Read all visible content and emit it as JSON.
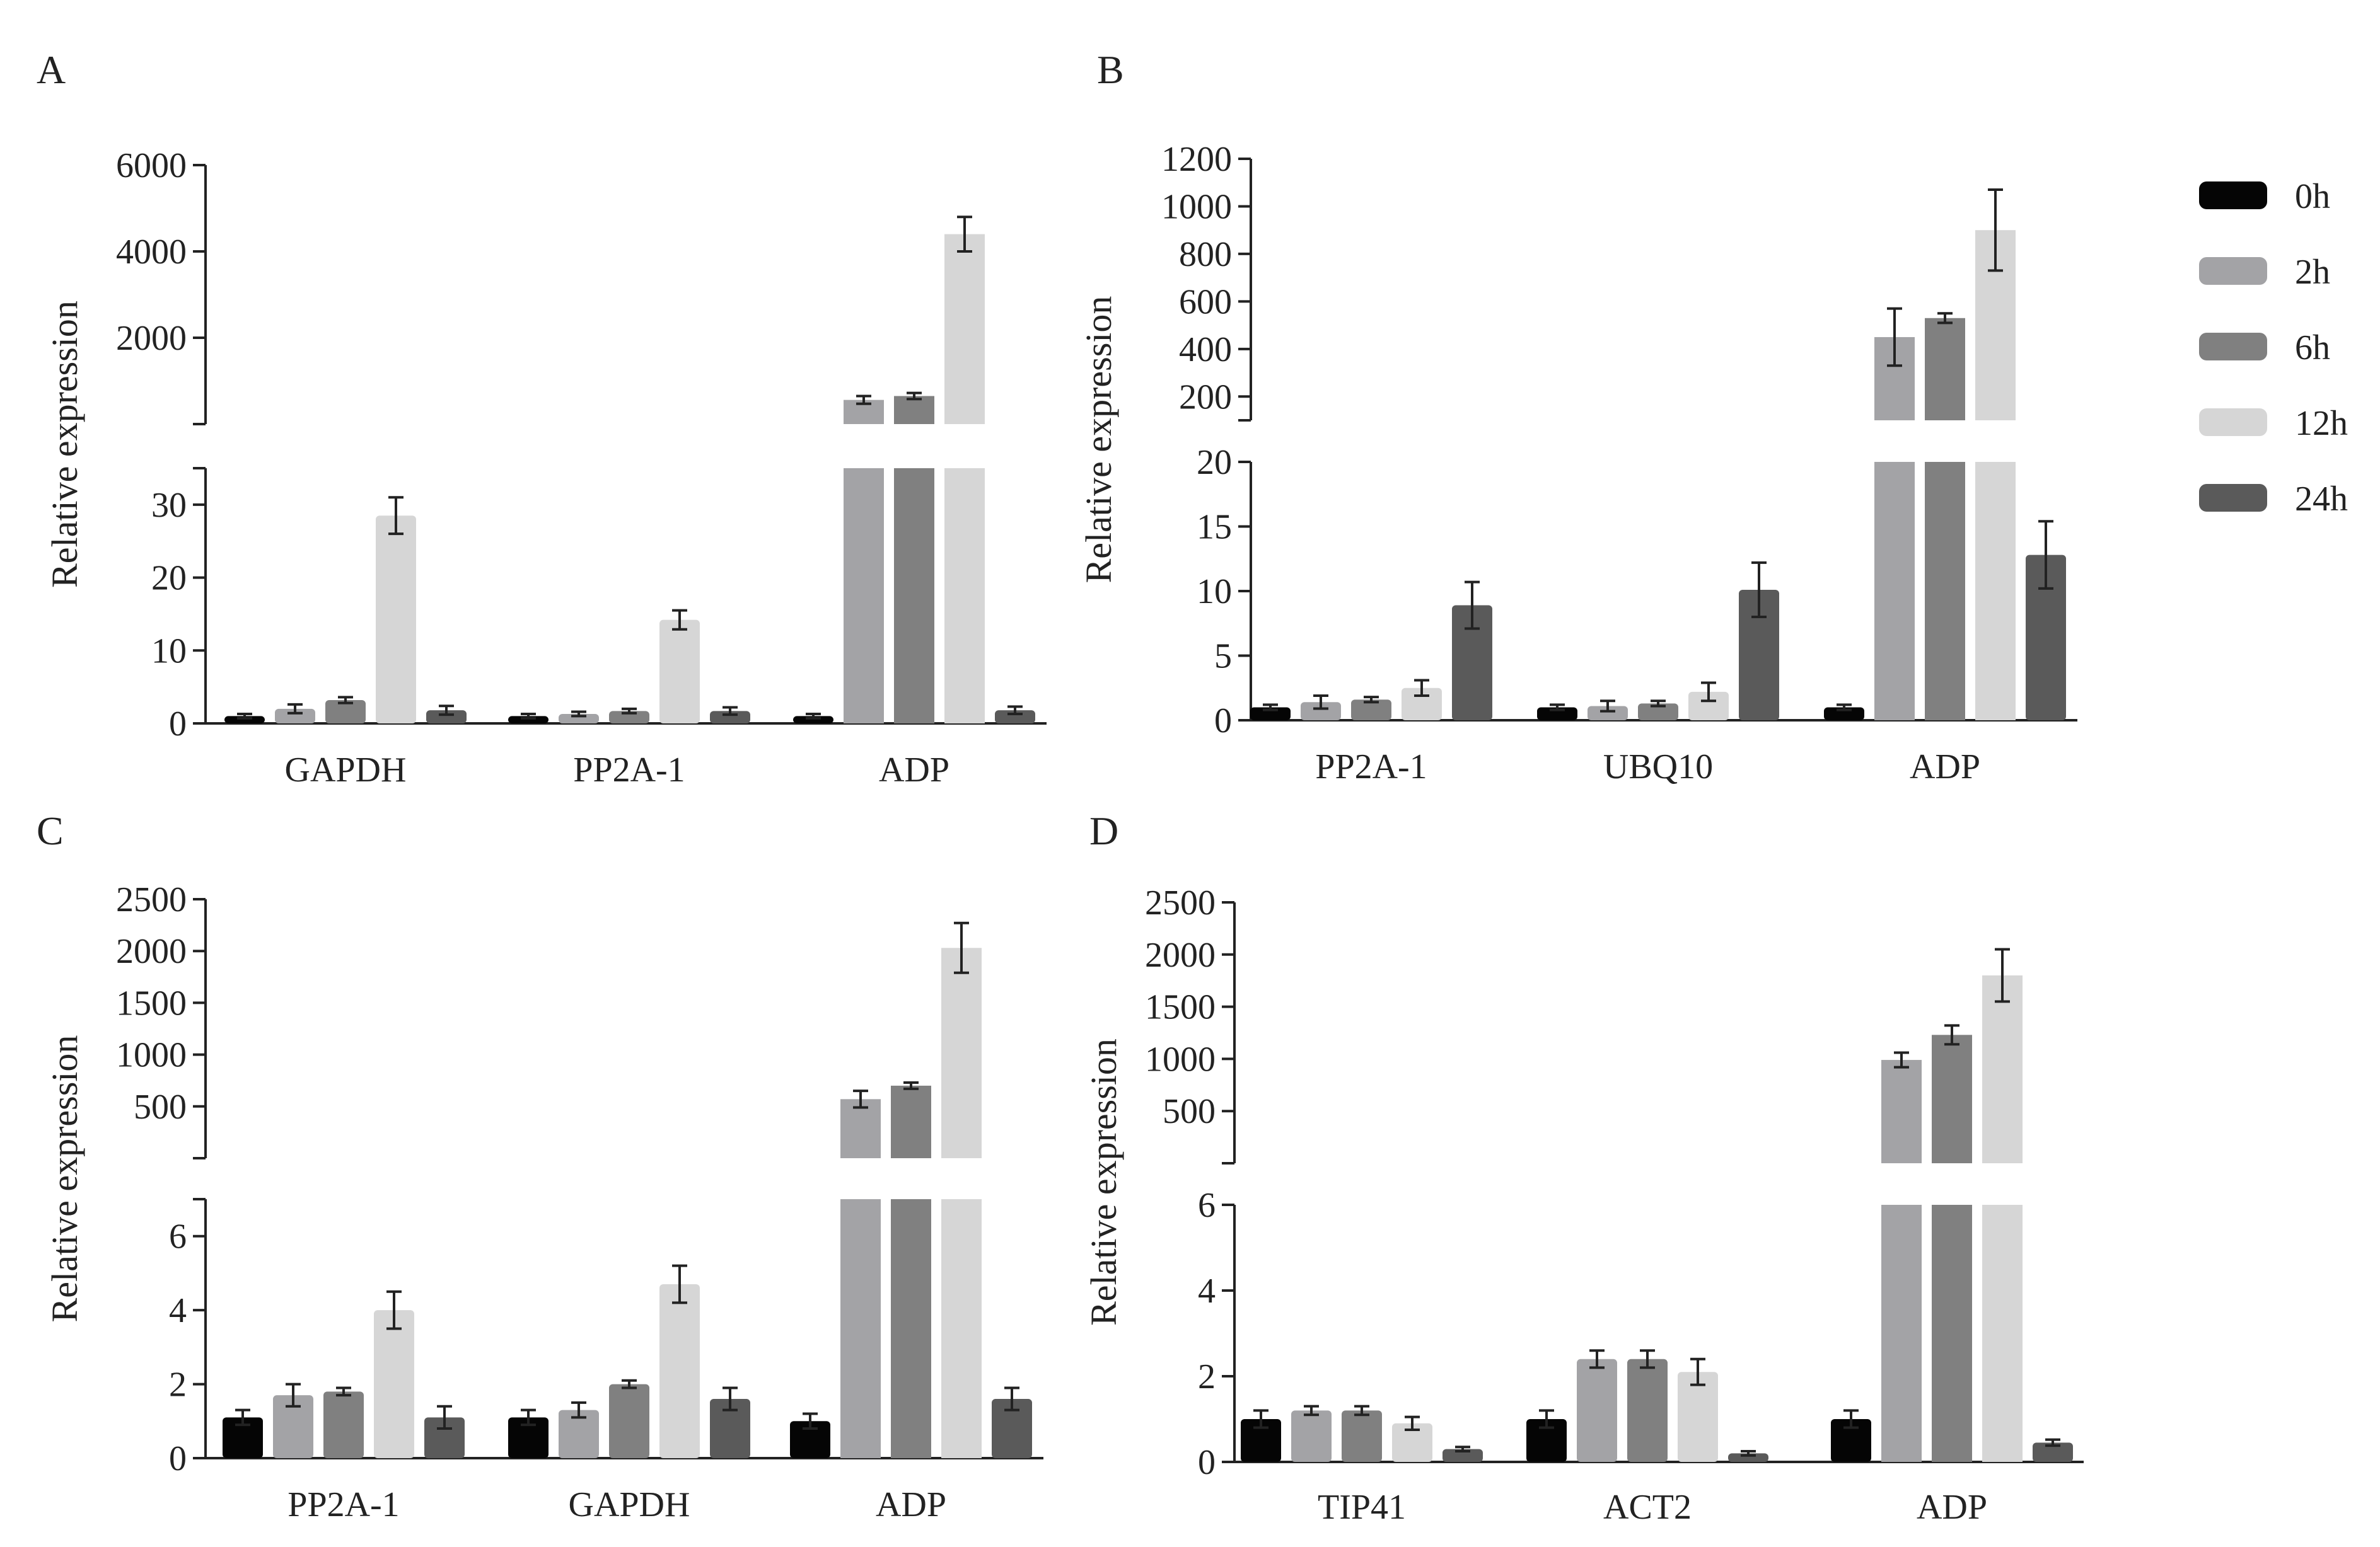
{
  "legend": {
    "items": [
      {
        "label": "0h",
        "color": "#050505"
      },
      {
        "label": "2h",
        "color": "#a3a3a6"
      },
      {
        "label": "6h",
        "color": "#808080"
      },
      {
        "label": "12h",
        "color": "#d6d6d6"
      },
      {
        "label": "24h",
        "color": "#5a5a5a"
      }
    ]
  },
  "chart_data": [
    {
      "panel": "A",
      "type": "bar",
      "ylabel": "Relative expression",
      "categories": [
        "GAPDH",
        "PP2A-1",
        "ADP"
      ],
      "series_names": [
        "0h",
        "2h",
        "6h",
        "12h",
        "24h"
      ],
      "lower_axis": {
        "ylim": [
          0,
          35
        ],
        "ticks": [
          "0",
          "10",
          "20",
          "30"
        ]
      },
      "upper_axis": {
        "ylim": [
          0,
          6000
        ],
        "ticks": [
          "2000",
          "4000",
          "6000"
        ]
      },
      "values": [
        [
          1,
          2,
          3.2,
          28.5,
          1.8
        ],
        [
          1,
          1.3,
          1.7,
          14.2,
          1.7
        ],
        [
          1,
          560,
          650,
          4400,
          1.8
        ]
      ],
      "errors": [
        [
          0.3,
          0.6,
          0.4,
          2.5,
          0.6
        ],
        [
          0.3,
          0.3,
          0.3,
          1.3,
          0.5
        ],
        [
          0.3,
          90,
          70,
          400,
          0.5
        ]
      ]
    },
    {
      "panel": "B",
      "type": "bar",
      "ylabel": "Relative expression",
      "categories": [
        "PP2A-1",
        "UBQ10",
        "ADP"
      ],
      "series_names": [
        "0h",
        "2h",
        "6h",
        "12h",
        "24h"
      ],
      "lower_axis": {
        "ylim": [
          0,
          20
        ],
        "ticks": [
          "0",
          "5",
          "10",
          "15",
          "20"
        ]
      },
      "upper_axis": {
        "ylim": [
          100,
          1200
        ],
        "ticks": [
          "200",
          "400",
          "600",
          "800",
          "1000",
          "1200"
        ]
      },
      "values": [
        [
          1,
          1.4,
          1.6,
          2.5,
          8.9
        ],
        [
          1,
          1.1,
          1.3,
          2.2,
          10.1
        ],
        [
          1,
          450,
          530,
          900,
          12.8
        ]
      ],
      "errors": [
        [
          0.2,
          0.5,
          0.2,
          0.6,
          1.8
        ],
        [
          0.2,
          0.4,
          0.2,
          0.7,
          2.1
        ],
        [
          0.2,
          120,
          20,
          170,
          2.6
        ]
      ]
    },
    {
      "panel": "C",
      "type": "bar",
      "ylabel": "Relative expression",
      "categories": [
        "PP2A-1",
        "GAPDH",
        "ADP"
      ],
      "series_names": [
        "0h",
        "2h",
        "6h",
        "12h",
        "24h"
      ],
      "lower_axis": {
        "ylim": [
          0,
          7
        ],
        "ticks": [
          "0",
          "2",
          "4",
          "6"
        ]
      },
      "upper_axis": {
        "ylim": [
          0,
          2500
        ],
        "ticks": [
          "500",
          "1000",
          "1500",
          "2000",
          "2500"
        ]
      },
      "values": [
        [
          1.1,
          1.7,
          1.8,
          4.0,
          1.1
        ],
        [
          1.1,
          1.3,
          2.0,
          4.7,
          1.6
        ],
        [
          1.0,
          570,
          700,
          2030,
          1.6
        ]
      ],
      "errors": [
        [
          0.2,
          0.3,
          0.1,
          0.5,
          0.3
        ],
        [
          0.2,
          0.2,
          0.1,
          0.5,
          0.3
        ],
        [
          0.2,
          80,
          30,
          240,
          0.3
        ]
      ]
    },
    {
      "panel": "D",
      "type": "bar",
      "ylabel": "Relative expression",
      "categories": [
        "TIP41",
        "ACT2",
        "ADP"
      ],
      "series_names": [
        "0h",
        "2h",
        "6h",
        "12h",
        "24h"
      ],
      "lower_axis": {
        "ylim": [
          0,
          6
        ],
        "ticks": [
          "0",
          "2",
          "4",
          "6"
        ]
      },
      "upper_axis": {
        "ylim": [
          0,
          2500
        ],
        "ticks": [
          "500",
          "1000",
          "1500",
          "2000",
          "2500"
        ]
      },
      "values": [
        [
          1.0,
          1.2,
          1.2,
          0.9,
          0.3
        ],
        [
          1.0,
          2.4,
          2.4,
          2.1,
          0.2
        ],
        [
          1.0,
          990,
          1230,
          1800,
          0.45
        ]
      ],
      "errors": [
        [
          0.2,
          0.1,
          0.1,
          0.15,
          0.05
        ],
        [
          0.2,
          0.2,
          0.2,
          0.3,
          0.05
        ],
        [
          0.2,
          70,
          90,
          250,
          0.07
        ]
      ]
    }
  ]
}
